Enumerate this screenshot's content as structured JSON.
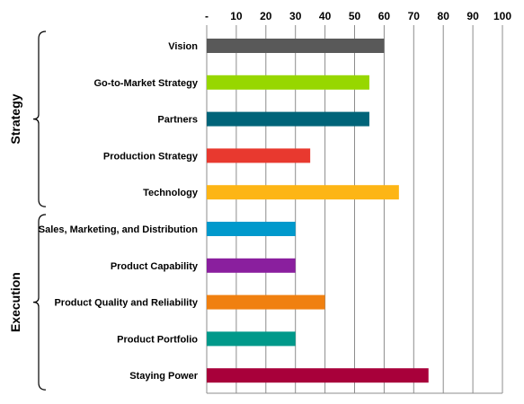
{
  "chart_data": {
    "type": "bar",
    "orientation": "horizontal",
    "title": "",
    "xlabel": "",
    "ylabel": "",
    "xlim": [
      0,
      100
    ],
    "x_ticks": [
      0,
      10,
      20,
      30,
      40,
      50,
      60,
      70,
      80,
      90,
      100
    ],
    "x_tick_labels": [
      "-",
      "10",
      "20",
      "30",
      "40",
      "50",
      "60",
      "70",
      "80",
      "90",
      "100"
    ],
    "x_axis_position": "top",
    "grid": true,
    "categories": [
      "Vision",
      "Go-to-Market Strategy",
      "Partners",
      "Production Strategy",
      "Technology",
      "Sales, Marketing, and Distribution",
      "Product Capability",
      "Product Quality and Reliability",
      "Product Portfolio",
      "Staying Power"
    ],
    "values": [
      60,
      55,
      55,
      35,
      65,
      30,
      30,
      40,
      30,
      75
    ],
    "colors": [
      "#595959",
      "#97d700",
      "#006479",
      "#e8392f",
      "#fdb515",
      "#0099cc",
      "#8a1f9e",
      "#f08010",
      "#00998a",
      "#a8003a"
    ],
    "groups": [
      {
        "label": "Strategy",
        "categories": [
          "Vision",
          "Go-to-Market Strategy",
          "Partners",
          "Production Strategy",
          "Technology"
        ]
      },
      {
        "label": "Execution",
        "categories": [
          "Sales, Marketing, and Distribution",
          "Product Capability",
          "Product Quality and Reliability",
          "Product Portfolio",
          "Staying Power"
        ]
      }
    ]
  }
}
